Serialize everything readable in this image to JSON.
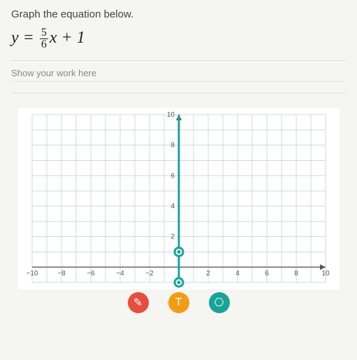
{
  "prompt": "Graph the equation below.",
  "equation": {
    "lhs": "y",
    "eq": " = ",
    "frac_num": "5",
    "frac_den": "6",
    "rhs_tail": "x + 1"
  },
  "work_label": "Show your work here",
  "chart": {
    "type": "grid",
    "xlim": [
      -10,
      10
    ],
    "ylim": [
      -1,
      10
    ],
    "tick_step": 2,
    "minor_step": 1,
    "x_ticks": [
      -10,
      -8,
      -6,
      -4,
      -2,
      2,
      4,
      6,
      8,
      10
    ],
    "y_ticks": [
      2,
      4,
      6,
      8,
      10
    ],
    "grid_color": "#d0d8e0",
    "axis_color": "#5b6a78",
    "plot_color": "#18a39a",
    "background": "#ffffff",
    "points": [
      {
        "x": 0,
        "y": 1
      },
      {
        "x": 0,
        "y": -1
      }
    ]
  },
  "toolbar": {
    "tools": [
      {
        "name": "tool-red",
        "color": "#e74c3c",
        "glyph": "✎"
      },
      {
        "name": "tool-orange",
        "color": "#f39c12",
        "glyph": "T"
      },
      {
        "name": "tool-teal",
        "color": "#18a39a",
        "glyph": "⎔"
      }
    ]
  }
}
